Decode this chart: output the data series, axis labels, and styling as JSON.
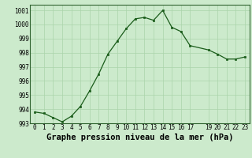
{
  "x": [
    0,
    1,
    2,
    3,
    4,
    5,
    6,
    7,
    8,
    9,
    10,
    11,
    12,
    13,
    14,
    15,
    16,
    17,
    19,
    20,
    21,
    22,
    23
  ],
  "y": [
    993.8,
    993.7,
    993.4,
    993.1,
    993.5,
    994.2,
    995.3,
    996.5,
    997.9,
    998.8,
    999.7,
    1000.4,
    1000.5,
    1000.3,
    1001.0,
    999.8,
    999.5,
    998.5,
    998.2,
    997.9,
    997.55,
    997.55,
    997.7
  ],
  "line_color": "#1a5c1a",
  "marker_color": "#1a5c1a",
  "bg_color": "#cceacc",
  "grid_color": "#aad4aa",
  "xlabel": "Graphe pression niveau de la mer (hPa)",
  "xlim": [
    -0.5,
    23.5
  ],
  "ylim": [
    993,
    1001.4
  ],
  "yticks": [
    993,
    994,
    995,
    996,
    997,
    998,
    999,
    1000,
    1001
  ],
  "xticks": [
    0,
    1,
    2,
    3,
    4,
    5,
    6,
    7,
    8,
    9,
    10,
    11,
    12,
    13,
    14,
    15,
    16,
    17,
    19,
    20,
    21,
    22,
    23
  ],
  "xtick_labels": [
    "0",
    "1",
    "2",
    "3",
    "4",
    "5",
    "6",
    "7",
    "8",
    "9",
    "10",
    "11",
    "12",
    "13",
    "14",
    "15",
    "16",
    "17",
    "19",
    "20",
    "21",
    "22",
    "23"
  ],
  "tick_fontsize": 5.5,
  "label_fontsize": 7.5,
  "marker_size": 2.0,
  "line_width": 0.9
}
